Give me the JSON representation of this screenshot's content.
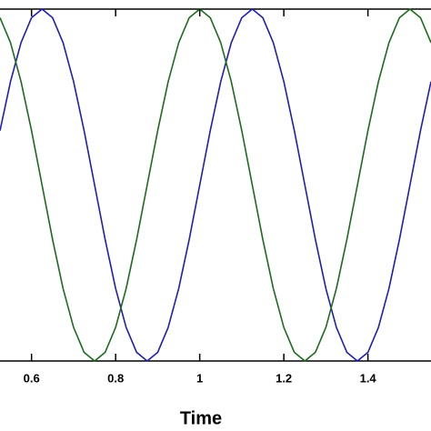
{
  "chart_data": {
    "type": "line",
    "x_label": "Time",
    "x": [
      0.525,
      0.55,
      0.575,
      0.6,
      0.625,
      0.65,
      0.675,
      0.7,
      0.725,
      0.75,
      0.775,
      0.8,
      0.825,
      0.85,
      0.875,
      0.9,
      0.925,
      0.95,
      0.975,
      1,
      1.025,
      1.05,
      1.075,
      1.1,
      1.125,
      1.15,
      1.175,
      1.2,
      1.225,
      1.25,
      1.275,
      1.3,
      1.325,
      1.35,
      1.375,
      1.4,
      1.425,
      1.45,
      1.475,
      1.5,
      1.525,
      1.55
    ],
    "series": [
      {
        "color": "#1f1fb0",
        "values": [
          0.309,
          0.588,
          0.809,
          0.951,
          1,
          0.951,
          0.809,
          0.588,
          0.309,
          0,
          -0.309,
          -0.588,
          -0.809,
          -0.951,
          -1,
          -0.951,
          -0.809,
          -0.588,
          -0.309,
          0,
          0.309,
          0.588,
          0.809,
          0.951,
          1,
          0.951,
          0.809,
          0.588,
          0.309,
          0,
          -0.309,
          -0.588,
          -0.809,
          -0.951,
          -1,
          -0.951,
          -0.809,
          -0.588,
          -0.309,
          0,
          0.309,
          0.588
        ]
      },
      {
        "color": "#1e6b1e",
        "values": [
          0.951,
          0.809,
          0.588,
          0.309,
          0,
          -0.309,
          -0.588,
          -0.809,
          -0.951,
          -1,
          -0.951,
          -0.809,
          -0.588,
          -0.309,
          0,
          0.309,
          0.588,
          0.809,
          0.951,
          1,
          0.951,
          0.809,
          0.588,
          0.309,
          0,
          -0.309,
          -0.588,
          -0.809,
          -0.951,
          -1,
          -0.951,
          -0.809,
          -0.588,
          -0.309,
          0,
          0.309,
          0.588,
          0.809,
          0.951,
          1,
          0.951,
          0.809
        ]
      }
    ],
    "xlim": [
      0.525,
      1.55
    ],
    "xticks": [
      0.6,
      0.8,
      1,
      1.2,
      1.4
    ],
    "ylim": [
      -1,
      1
    ]
  }
}
